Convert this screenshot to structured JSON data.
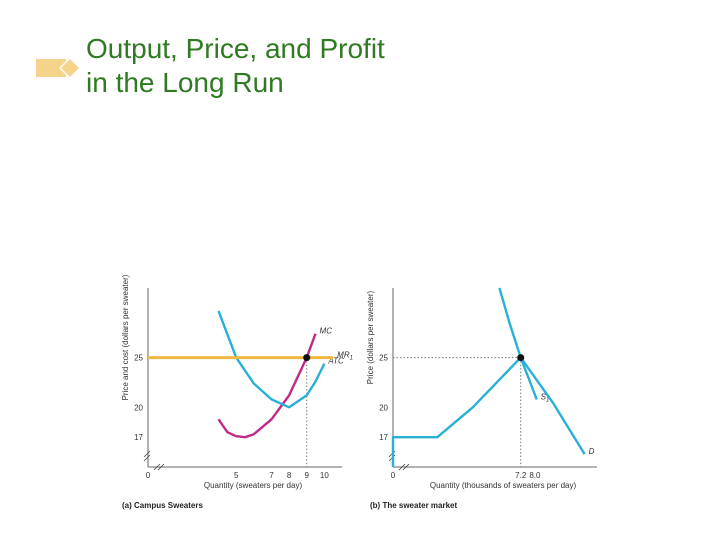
{
  "slide": {
    "title_line1": "Output, Price, and Profit",
    "title_line2": "in the Long Run",
    "accent_color": "#f6d38a",
    "title_color": "#2f7a22"
  },
  "chart_data": [
    {
      "type": "line",
      "caption": "(a) Campus Sweaters",
      "xlabel": "Quantity (sweaters per day)",
      "ylabel": "Price and cost (dollars per sweater)",
      "xlim": [
        0,
        11
      ],
      "ylim": [
        14,
        32
      ],
      "x_ticks": [
        {
          "v": 0,
          "label": "0"
        },
        {
          "v": 5,
          "label": "5"
        },
        {
          "v": 7,
          "label": "7"
        },
        {
          "v": 8,
          "label": "8"
        },
        {
          "v": 9,
          "label": "9"
        },
        {
          "v": 10,
          "label": "10"
        }
      ],
      "y_ticks": [
        {
          "v": 25,
          "label": "25"
        },
        {
          "v": 20,
          "label": "20"
        },
        {
          "v": 17,
          "label": "17"
        }
      ],
      "series": [
        {
          "name": "MC",
          "color": "#c0288a",
          "x": [
            4,
            4.5,
            5,
            5.5,
            6,
            7,
            8,
            9,
            9.5
          ],
          "y": [
            18.8,
            17.5,
            17.1,
            17.0,
            17.3,
            18.8,
            21.2,
            25.0,
            27.4
          ]
        },
        {
          "name": "ATC",
          "color": "#29b0d8",
          "x": [
            4,
            5,
            6,
            7,
            8,
            9,
            9.5,
            10
          ],
          "y": [
            29.7,
            25.0,
            22.4,
            20.8,
            20.0,
            21.2,
            22.6,
            24.4
          ]
        },
        {
          "name": "MR1",
          "color": "#f0b840",
          "x": [
            0,
            10.5
          ],
          "y": [
            25,
            25
          ]
        }
      ],
      "points": [
        {
          "x": 9,
          "y": 25
        }
      ],
      "guides": [
        {
          "from": [
            9,
            25
          ],
          "to": [
            9,
            14
          ]
        }
      ]
    },
    {
      "type": "line",
      "caption": "(b) The sweater market",
      "xlabel": "Quantity (thousands of sweaters per day)",
      "ylabel": "Price (dollars per sweater)",
      "xlim": [
        0,
        11.5
      ],
      "ylim": [
        14,
        32
      ],
      "x_ticks": [
        {
          "v": 0,
          "label": "0"
        },
        {
          "v": 7.2,
          "label": "7.2"
        },
        {
          "v": 8.0,
          "label": "8.0"
        }
      ],
      "y_ticks": [
        {
          "v": 25,
          "label": "25"
        },
        {
          "v": 20,
          "label": "20"
        },
        {
          "v": 17,
          "label": "17"
        }
      ],
      "series": [
        {
          "name": "S1",
          "color": "#29b0d8",
          "x": [
            6.0,
            6.6,
            7.2,
            7.8,
            8.1
          ],
          "y": [
            32.0,
            28.3,
            25.0,
            22.2,
            20.8
          ]
        },
        {
          "name": "D",
          "color": "#29b0d8",
          "x": [
            0,
            0,
            2.5,
            4.5,
            7.2,
            9,
            10.8
          ],
          "y": [
            14.0,
            17.0,
            17.0,
            20.0,
            25.0,
            20.5,
            15.3
          ]
        }
      ],
      "points": [
        {
          "x": 7.2,
          "y": 25
        }
      ],
      "guides": [
        {
          "from": [
            0,
            25
          ],
          "to": [
            7.2,
            25
          ]
        },
        {
          "from": [
            7.2,
            25
          ],
          "to": [
            7.2,
            14
          ]
        }
      ]
    }
  ]
}
